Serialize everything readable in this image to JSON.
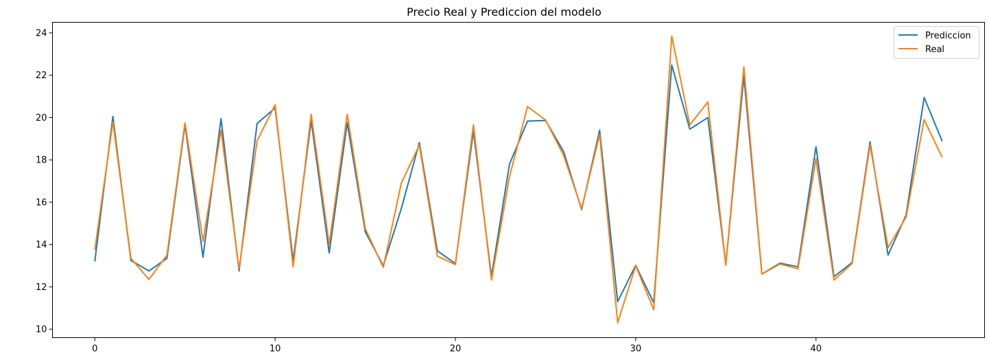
{
  "chart_data": {
    "type": "line",
    "title": "Precio Real y Prediccion del modelo",
    "xlabel": "",
    "ylabel": "",
    "xlim": [
      -2.35,
      49.35
    ],
    "ylim": [
      9.6,
      24.5
    ],
    "xticks": [
      0,
      10,
      20,
      30,
      40
    ],
    "yticks": [
      10,
      12,
      14,
      16,
      18,
      20,
      22,
      24
    ],
    "grid": false,
    "legend_position": "top-right",
    "x": [
      0,
      1,
      2,
      3,
      4,
      5,
      6,
      7,
      8,
      9,
      10,
      11,
      12,
      13,
      14,
      15,
      16,
      17,
      18,
      19,
      20,
      21,
      22,
      23,
      24,
      25,
      26,
      27,
      28,
      29,
      30,
      31,
      32,
      33,
      34,
      35,
      36,
      37,
      38,
      39,
      40,
      41,
      42,
      43,
      44,
      45,
      46,
      47
    ],
    "series": [
      {
        "name": "Prediccion",
        "color": "#1f77b4",
        "values": [
          13.2,
          20.05,
          13.25,
          12.75,
          13.35,
          19.65,
          13.4,
          19.95,
          12.75,
          19.72,
          20.45,
          13.25,
          19.85,
          13.6,
          19.75,
          14.6,
          13.0,
          15.7,
          18.82,
          13.7,
          13.1,
          19.35,
          12.5,
          17.8,
          19.83,
          19.86,
          18.4,
          15.65,
          19.4,
          11.3,
          13.02,
          11.25,
          22.48,
          19.45,
          20.0,
          13.05,
          21.95,
          12.6,
          13.12,
          12.95,
          18.62,
          12.48,
          13.15,
          18.85,
          13.5,
          15.4,
          20.95,
          18.88
        ]
      },
      {
        "name": "Real",
        "color": "#ff7f0e",
        "values": [
          13.75,
          19.8,
          13.35,
          12.35,
          13.5,
          19.75,
          14.15,
          19.4,
          12.85,
          18.9,
          20.6,
          12.95,
          20.15,
          14.0,
          20.15,
          14.75,
          12.92,
          16.9,
          18.7,
          13.45,
          13.05,
          19.65,
          12.32,
          17.2,
          20.52,
          19.88,
          18.22,
          15.7,
          19.2,
          10.3,
          13.0,
          10.92,
          23.85,
          19.65,
          20.73,
          13.02,
          22.4,
          12.6,
          13.08,
          12.85,
          18.05,
          12.32,
          13.1,
          18.7,
          13.85,
          15.3,
          19.9,
          18.12
        ]
      }
    ]
  }
}
